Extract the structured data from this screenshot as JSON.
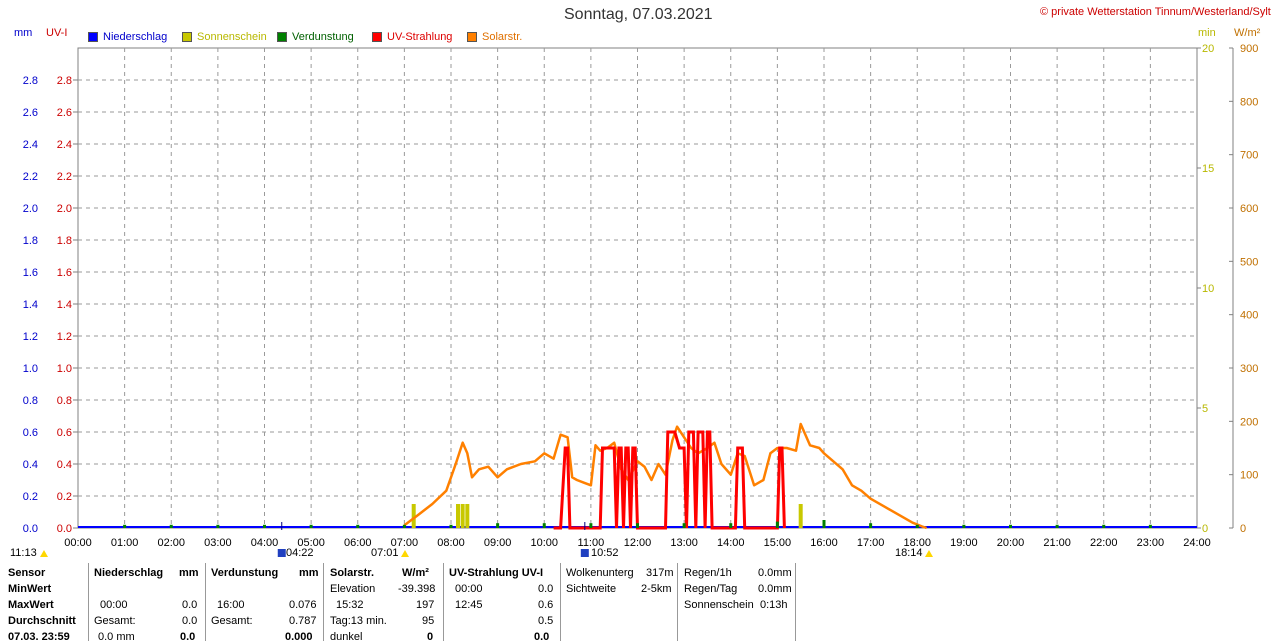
{
  "title": "Sonntag, 07.03.2021",
  "copyright": "© private Wetterstation Tinnum/Westerland/Sylt",
  "axis_units": {
    "left_mm": "mm",
    "left_uv": "UV-I",
    "right_min": "min",
    "right_wm2": "W/m²"
  },
  "legend": [
    {
      "label": "Niederschlag",
      "color": "#0000ff",
      "text_color": "#0000cc"
    },
    {
      "label": "Sonnenschein",
      "color": "#c8c800",
      "text_color": "#b8b800"
    },
    {
      "label": "Verdunstung",
      "color": "#008000",
      "text_color": "#006000"
    },
    {
      "label": "UV-Strahlung",
      "color": "#ff0000",
      "text_color": "#dd0000"
    },
    {
      "label": "Solarstr.",
      "color": "#ff8000",
      "text_color": "#e07000"
    }
  ],
  "chart_data": {
    "type": "line",
    "x_ticks": [
      "00:00",
      "01:00",
      "02:00",
      "03:00",
      "04:00",
      "05:00",
      "06:00",
      "07:00",
      "08:00",
      "09:00",
      "10:00",
      "11:00",
      "12:00",
      "13:00",
      "14:00",
      "15:00",
      "16:00",
      "17:00",
      "18:00",
      "19:00",
      "20:00",
      "21:00",
      "22:00",
      "23:00",
      "24:00"
    ],
    "y_left_ticks": [
      "0.0",
      "0.2",
      "0.4",
      "0.6",
      "0.8",
      "1.0",
      "1.2",
      "1.4",
      "1.6",
      "1.8",
      "2.0",
      "2.2",
      "2.4",
      "2.6",
      "2.8"
    ],
    "y_min_ticks": [
      "0",
      "5",
      "10",
      "15",
      "20"
    ],
    "y_wm2_ticks": [
      "0",
      "100",
      "200",
      "300",
      "400",
      "500",
      "600",
      "700",
      "800",
      "900"
    ],
    "ylim_left": [
      0,
      3.0
    ],
    "ylim_min": [
      0,
      20
    ],
    "ylim_wm2": [
      0,
      900
    ],
    "grid": true,
    "solar": {
      "name": "Solarstr.",
      "x": [
        7.0,
        7.3,
        7.6,
        7.9,
        8.1,
        8.25,
        8.35,
        8.45,
        8.6,
        8.8,
        9.0,
        9.2,
        9.5,
        9.8,
        10.0,
        10.2,
        10.35,
        10.5,
        10.6,
        10.7,
        10.85,
        11.0,
        11.1,
        11.2,
        11.35,
        11.5,
        11.65,
        11.8,
        12.0,
        12.15,
        12.3,
        12.45,
        12.6,
        12.75,
        12.85,
        13.0,
        13.15,
        13.3,
        13.5,
        13.65,
        13.8,
        14.0,
        14.15,
        14.3,
        14.5,
        14.7,
        14.85,
        15.0,
        15.2,
        15.4,
        15.5,
        15.7,
        15.9,
        16.0,
        16.2,
        16.4,
        16.6,
        16.8,
        17.0,
        17.3,
        17.6,
        17.9,
        18.1,
        18.2
      ],
      "y": [
        5,
        25,
        45,
        70,
        120,
        160,
        140,
        95,
        110,
        115,
        95,
        110,
        120,
        125,
        140,
        130,
        175,
        170,
        95,
        90,
        85,
        80,
        155,
        145,
        150,
        160,
        110,
        90,
        125,
        115,
        90,
        120,
        100,
        165,
        190,
        170,
        150,
        140,
        150,
        160,
        120,
        100,
        140,
        135,
        80,
        90,
        140,
        150,
        150,
        145,
        195,
        155,
        150,
        140,
        125,
        110,
        80,
        70,
        55,
        40,
        25,
        10,
        3,
        0
      ],
      "unit": "W/m²"
    },
    "uv": {
      "name": "UV-Strahlung",
      "x": [
        10.2,
        10.35,
        10.45,
        10.5,
        10.55,
        11.2,
        11.25,
        11.3,
        11.35,
        11.45,
        11.5,
        11.55,
        11.6,
        11.65,
        11.7,
        11.75,
        11.8,
        11.85,
        11.9,
        11.95,
        12.0,
        12.6,
        12.65,
        12.7,
        12.75,
        12.8,
        12.9,
        13.0,
        13.05,
        13.1,
        13.2,
        13.25,
        13.3,
        13.4,
        13.45,
        13.5,
        13.55,
        13.6,
        14.1,
        14.15,
        14.2,
        14.25,
        14.3,
        15.0,
        15.05,
        15.1,
        15.15
      ],
      "y": [
        0,
        0,
        0.5,
        0.5,
        0,
        0,
        0.5,
        0.5,
        0.5,
        0.5,
        0.5,
        0,
        0.5,
        0.5,
        0,
        0.5,
        0.5,
        0,
        0.5,
        0.5,
        0,
        0,
        0.6,
        0.6,
        0.6,
        0.6,
        0.5,
        0.5,
        0,
        0.6,
        0.6,
        0,
        0.6,
        0.6,
        0,
        0.6,
        0.6,
        0,
        0,
        0.5,
        0.5,
        0.5,
        0,
        0,
        0.5,
        0.5,
        0
      ],
      "unit": "UV-I"
    },
    "sunshine": {
      "name": "Sonnenschein",
      "x": [
        7.2,
        8.15,
        8.25,
        8.35,
        15.5
      ],
      "y": [
        1.0,
        1.0,
        1.0,
        1.0,
        1.0
      ],
      "unit": "min"
    },
    "evaporation": {
      "name": "Verdunstung",
      "x": [
        1,
        2,
        3,
        4,
        5,
        6,
        7,
        8,
        9,
        10,
        11,
        12,
        13,
        14,
        15,
        16,
        17,
        18,
        19,
        20,
        21,
        22,
        23
      ],
      "y": [
        0.02,
        0.02,
        0.02,
        0.02,
        0.02,
        0.02,
        0.02,
        0.02,
        0.03,
        0.03,
        0.03,
        0.03,
        0.03,
        0.03,
        0.04,
        0.05,
        0.03,
        0.02,
        0.02,
        0.02,
        0.02,
        0.02,
        0.02
      ],
      "unit": "mm"
    },
    "precipitation": {
      "name": "Niederschlag",
      "values_total": 0.0,
      "unit": "mm"
    }
  },
  "markers": {
    "left_time": "11:13",
    "sunrise": "04:22",
    "morning": "07:01",
    "noon": "10:52",
    "sunset": "18:14"
  },
  "table": {
    "sensor": {
      "header": "Sensor",
      "rows": [
        "MinWert",
        "MaxWert",
        "Durchschnitt",
        "07.03. 23:59"
      ]
    },
    "niederschlag": {
      "header": "Niederschlag",
      "unit": "mm",
      "max_time": "00:00",
      "max_val": "0.0",
      "gesamt_label": "Gesamt:",
      "gesamt_val": "0.0",
      "last_val": "0.0 mm",
      "last_right": "0.0"
    },
    "verdunstung": {
      "header": "Verdunstung",
      "unit": "mm",
      "max_time": "16:00",
      "max_val": "0.076",
      "gesamt_label": "Gesamt:",
      "gesamt_val": "0.787",
      "last_right": "0.000"
    },
    "solar": {
      "header": "Solarstr.",
      "unit": "W/m²",
      "elev_label": "Elevation",
      "elev_val": "-39.398",
      "max_time": "15:32",
      "max_val": "197",
      "tag_label": "Tag:13 min.",
      "tag_val": "95",
      "dunkel_label": "dunkel",
      "dunkel_val": "0"
    },
    "uv": {
      "header": "UV-Strahlung UV-I",
      "min_time": "00:00",
      "min_val": "0.0",
      "max_time": "12:45",
      "max_val": "0.6",
      "avg_val": "0.5",
      "last_val": "0.0"
    },
    "clouds": {
      "wolken_label": "Wolkenunterg",
      "wolken_val": "317m",
      "sicht_label": "Sichtweite",
      "sicht_val": "2-5km"
    },
    "rain": {
      "regen1h_label": "Regen/1h",
      "regen1h_val": "0.0mm",
      "regentag_label": "Regen/Tag",
      "regentag_val": "0.0mm",
      "sonne_label": "Sonnenschein",
      "sonne_val": "0:13h"
    }
  }
}
